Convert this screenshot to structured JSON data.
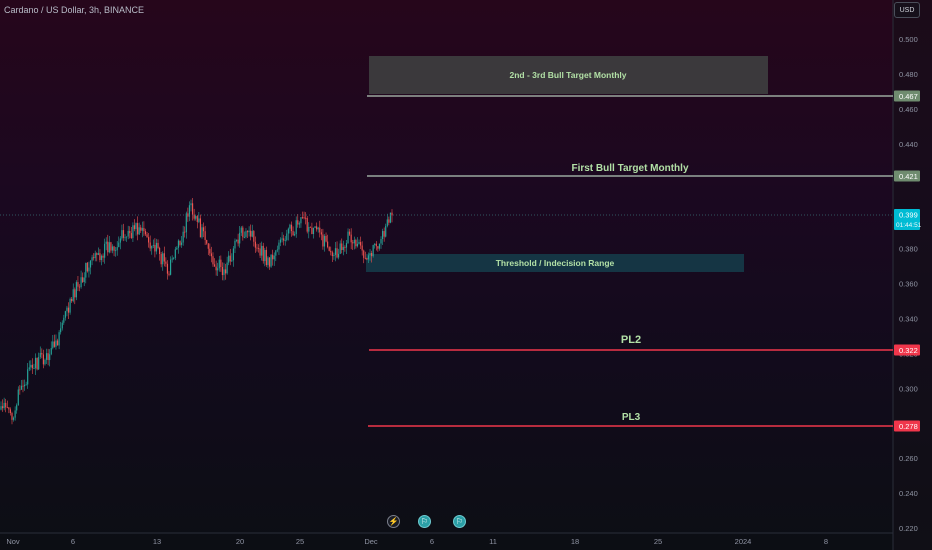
{
  "header": {
    "symbol": "Cardano / US Dollar, 3h, BINANCE",
    "currency": "USD"
  },
  "icons": [
    "lightning-icon",
    "event-flag-icon",
    "event-flag-icon"
  ],
  "colors": {
    "bull": "#26a69a",
    "bear": "#ef5350",
    "target_line": "#b2c8b8",
    "target_tag": "#6f8c6f",
    "pl_line": "#f0364b",
    "pl_tag": "#f0364b",
    "current_tag": "#00bcd4",
    "threshold_box": "#153847",
    "bull_target_box": "#3e3e3f"
  },
  "chart_data": {
    "type": "candlestick",
    "symbol": "Cardano / US Dollar",
    "interval": "3h",
    "exchange": "BINANCE",
    "currency": "USD",
    "y_axis": {
      "ticks": [
        "0.500",
        "0.480",
        "0.460",
        "0.440",
        "0.400",
        "0.380",
        "0.360",
        "0.340",
        "0.320",
        "0.300",
        "0.280",
        "0.260",
        "0.240",
        "0.220"
      ],
      "range": [
        0.216,
        0.505
      ]
    },
    "x_axis": {
      "ticks": [
        "Nov",
        "6",
        "13",
        "20",
        "25",
        "Dec",
        "6",
        "11",
        "18",
        "25",
        "2024",
        "8"
      ]
    },
    "price_anchors": [
      [
        "Nov",
        0.289
      ],
      [
        "Nov 1",
        0.285
      ],
      [
        "Nov 2",
        0.303
      ],
      [
        "Nov 3",
        0.314
      ],
      [
        "Nov 4",
        0.318
      ],
      [
        "Nov 5",
        0.328
      ],
      [
        "Nov 6",
        0.345
      ],
      [
        "Nov 7",
        0.362
      ],
      [
        "Nov 8",
        0.372
      ],
      [
        "Nov 9",
        0.378
      ],
      [
        "Nov 10",
        0.382
      ],
      [
        "Nov 11",
        0.387
      ],
      [
        "Nov 12",
        0.392
      ],
      [
        "Nov 13",
        0.388
      ],
      [
        "Nov 14",
        0.378
      ],
      [
        "Nov 15",
        0.368
      ],
      [
        "Nov 16",
        0.383
      ],
      [
        "Nov 17",
        0.406
      ],
      [
        "Nov 18",
        0.388
      ],
      [
        "Nov 19",
        0.373
      ],
      [
        "Nov 20",
        0.366
      ],
      [
        "Nov 21",
        0.383
      ],
      [
        "Nov 22",
        0.393
      ],
      [
        "Nov 23",
        0.382
      ],
      [
        "Nov 24",
        0.372
      ],
      [
        "Nov 25",
        0.383
      ],
      [
        "Nov 26",
        0.391
      ],
      [
        "Nov 27",
        0.395
      ],
      [
        "Nov 28",
        0.392
      ],
      [
        "Nov 29",
        0.384
      ],
      [
        "Nov 30",
        0.378
      ],
      [
        "Dec",
        0.387
      ],
      [
        "Dec 1",
        0.381
      ],
      [
        "Dec 2",
        0.377
      ],
      [
        "Dec 3",
        0.386
      ],
      [
        "Dec 4",
        0.399
      ]
    ],
    "current_price": {
      "value": 0.399,
      "countdown": "01:44:51"
    },
    "levels": [
      {
        "name": "2nd - 3rd Bull Target Monthly",
        "value": 0.467,
        "label": "0.467"
      },
      {
        "name": "First Bull Target Monthly",
        "value": 0.421,
        "label": "0.421"
      },
      {
        "name": "PL2",
        "value": 0.322,
        "label": "0.322"
      },
      {
        "name": "PL3",
        "value": 0.278,
        "label": "0.278"
      }
    ],
    "zones": [
      {
        "name": "2nd - 3rd Bull Target Monthly",
        "top": 0.49,
        "bottom": 0.468
      },
      {
        "name": "Threshold / Indecision Range",
        "top": 0.377,
        "bottom": 0.367
      }
    ],
    "grid": false
  }
}
